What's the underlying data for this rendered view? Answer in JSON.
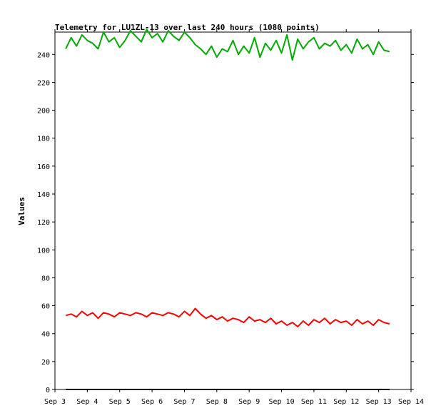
{
  "chart_data": {
    "type": "line",
    "title": "Telemetry for LU1ZL-13 over last 240 hours (1080 points)",
    "xlabel": "",
    "ylabel": "Values",
    "ylim": [
      0,
      256
    ],
    "xlim": [
      "2015-09-03 00:00",
      "2015-09-14 00:00"
    ],
    "x_tick_labels": [
      "Sep 3",
      "Sep 4",
      "Sep 5",
      "Sep 6",
      "Sep 7",
      "Sep 8",
      "Sep 9",
      "Sep 10",
      "Sep 11",
      "Sep 12",
      "Sep 13",
      "Sep 14"
    ],
    "y_tick_labels": [
      "0",
      "20",
      "40",
      "60",
      "80",
      "100",
      "120",
      "140",
      "160",
      "180",
      "200",
      "220",
      "240"
    ],
    "grid": false,
    "series": [
      {
        "color": "#00aa00",
        "x": [
          "2015-09-03 08:00",
          "2015-09-03 12:00",
          "2015-09-03 16:00",
          "2015-09-03 20:00",
          "2015-09-04 00:00",
          "2015-09-04 04:00",
          "2015-09-04 08:00",
          "2015-09-04 12:00",
          "2015-09-04 16:00",
          "2015-09-04 20:00",
          "2015-09-05 00:00",
          "2015-09-05 04:00",
          "2015-09-05 08:00",
          "2015-09-05 12:00",
          "2015-09-05 16:00",
          "2015-09-05 20:00",
          "2015-09-06 00:00",
          "2015-09-06 04:00",
          "2015-09-06 08:00",
          "2015-09-06 12:00",
          "2015-09-06 16:00",
          "2015-09-06 20:00",
          "2015-09-07 00:00",
          "2015-09-07 04:00",
          "2015-09-07 08:00",
          "2015-09-07 12:00",
          "2015-09-07 16:00",
          "2015-09-07 20:00",
          "2015-09-08 00:00",
          "2015-09-08 04:00",
          "2015-09-08 08:00",
          "2015-09-08 12:00",
          "2015-09-08 16:00",
          "2015-09-08 20:00",
          "2015-09-09 00:00",
          "2015-09-09 04:00",
          "2015-09-09 08:00",
          "2015-09-09 12:00",
          "2015-09-09 16:00",
          "2015-09-09 20:00",
          "2015-09-10 00:00",
          "2015-09-10 04:00",
          "2015-09-10 08:00",
          "2015-09-10 12:00",
          "2015-09-10 16:00",
          "2015-09-10 20:00",
          "2015-09-11 00:00",
          "2015-09-11 04:00",
          "2015-09-11 08:00",
          "2015-09-11 12:00",
          "2015-09-11 16:00",
          "2015-09-11 20:00",
          "2015-09-12 00:00",
          "2015-09-12 04:00",
          "2015-09-12 08:00",
          "2015-09-12 12:00",
          "2015-09-12 16:00",
          "2015-09-12 20:00",
          "2015-09-13 00:00",
          "2015-09-13 04:00",
          "2015-09-13 08:00"
        ],
        "values": [
          244,
          252,
          246,
          254,
          250,
          248,
          244,
          256,
          249,
          252,
          245,
          250,
          257,
          253,
          249,
          258,
          252,
          255,
          249,
          257,
          253,
          250,
          256,
          252,
          247,
          244,
          240,
          246,
          238,
          244,
          242,
          250,
          240,
          246,
          241,
          252,
          238,
          248,
          243,
          250,
          241,
          254,
          236,
          251,
          244,
          249,
          252,
          244,
          248,
          246,
          250,
          243,
          247,
          241,
          251,
          244,
          247,
          240,
          249,
          243,
          242
        ]
      },
      {
        "color": "#ff0000",
        "x": [
          "2015-09-03 08:00",
          "2015-09-03 12:00",
          "2015-09-03 16:00",
          "2015-09-03 20:00",
          "2015-09-04 00:00",
          "2015-09-04 04:00",
          "2015-09-04 08:00",
          "2015-09-04 12:00",
          "2015-09-04 16:00",
          "2015-09-04 20:00",
          "2015-09-05 00:00",
          "2015-09-05 04:00",
          "2015-09-05 08:00",
          "2015-09-05 12:00",
          "2015-09-05 16:00",
          "2015-09-05 20:00",
          "2015-09-06 00:00",
          "2015-09-06 04:00",
          "2015-09-06 08:00",
          "2015-09-06 12:00",
          "2015-09-06 16:00",
          "2015-09-06 20:00",
          "2015-09-07 00:00",
          "2015-09-07 04:00",
          "2015-09-07 08:00",
          "2015-09-07 12:00",
          "2015-09-07 16:00",
          "2015-09-07 20:00",
          "2015-09-08 00:00",
          "2015-09-08 04:00",
          "2015-09-08 08:00",
          "2015-09-08 12:00",
          "2015-09-08 16:00",
          "2015-09-08 20:00",
          "2015-09-09 00:00",
          "2015-09-09 04:00",
          "2015-09-09 08:00",
          "2015-09-09 12:00",
          "2015-09-09 16:00",
          "2015-09-09 20:00",
          "2015-09-10 00:00",
          "2015-09-10 04:00",
          "2015-09-10 08:00",
          "2015-09-10 12:00",
          "2015-09-10 16:00",
          "2015-09-10 20:00",
          "2015-09-11 00:00",
          "2015-09-11 04:00",
          "2015-09-11 08:00",
          "2015-09-11 12:00",
          "2015-09-11 16:00",
          "2015-09-11 20:00",
          "2015-09-12 00:00",
          "2015-09-12 04:00",
          "2015-09-12 08:00",
          "2015-09-12 12:00",
          "2015-09-12 16:00",
          "2015-09-12 20:00",
          "2015-09-13 00:00",
          "2015-09-13 04:00",
          "2015-09-13 08:00"
        ],
        "values": [
          53,
          54,
          52,
          56,
          53,
          55,
          51,
          55,
          54,
          52,
          55,
          54,
          53,
          55,
          54,
          52,
          55,
          54,
          53,
          55,
          54,
          52,
          56,
          53,
          58,
          54,
          51,
          53,
          50,
          52,
          49,
          51,
          50,
          48,
          52,
          49,
          50,
          48,
          51,
          47,
          49,
          46,
          48,
          45,
          49,
          46,
          50,
          48,
          51,
          47,
          50,
          48,
          49,
          46,
          50,
          47,
          49,
          46,
          50,
          48,
          47
        ]
      },
      {
        "color": "#000000",
        "x": [
          "2015-09-03 08:00",
          "2015-09-13 08:00"
        ],
        "values": [
          0,
          0
        ]
      }
    ]
  }
}
